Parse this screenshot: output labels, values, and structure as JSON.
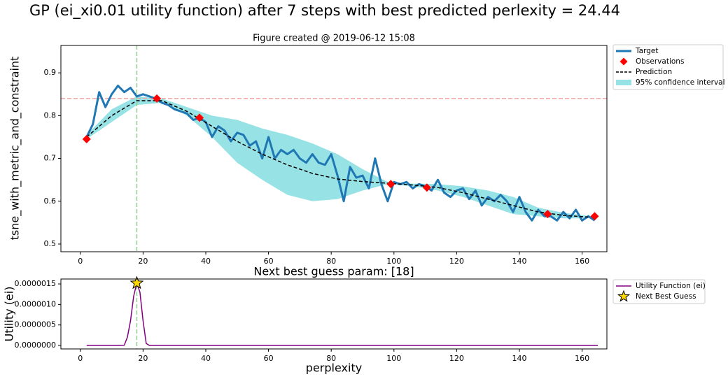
{
  "chart_data": [
    {
      "type": "line",
      "suptitle": "GP (ei_xi0.01 utility function) after 7 steps with best predicted perlexity = 24.44",
      "title": "Figure created @ 2019-06-12 15:08",
      "y_label": "tsne_with_metric_and_constraint",
      "xlim": [
        -6.2,
        167.9
      ],
      "xticks": [
        0,
        20,
        40,
        60,
        80,
        100,
        120,
        140,
        160
      ],
      "ylim": [
        0.482,
        0.964
      ],
      "yticks": [
        0.5,
        0.6,
        0.7,
        0.8,
        0.9
      ],
      "legend": "outside upper right",
      "reference_lines": [
        {
          "axis": "y",
          "value": 0.84,
          "color": "#f4a3a3"
        },
        {
          "axis": "x",
          "value": 18,
          "color": "#8fcf8f"
        }
      ],
      "series": [
        {
          "name": "95% confidence interval",
          "kind": "band",
          "color": "#96e2e4",
          "x": [
            2,
            10,
            18,
            26,
            34,
            42,
            50,
            58,
            66,
            74,
            82,
            90,
            98,
            106,
            114,
            122,
            130,
            138,
            146,
            154,
            162
          ],
          "lower": [
            0.745,
            0.785,
            0.825,
            0.83,
            0.8,
            0.75,
            0.69,
            0.65,
            0.615,
            0.6,
            0.605,
            0.625,
            0.64,
            0.635,
            0.625,
            0.61,
            0.59,
            0.57,
            0.565,
            0.56,
            0.56
          ],
          "upper": [
            0.755,
            0.815,
            0.845,
            0.84,
            0.82,
            0.8,
            0.79,
            0.77,
            0.755,
            0.735,
            0.71,
            0.675,
            0.645,
            0.641,
            0.64,
            0.635,
            0.625,
            0.61,
            0.585,
            0.573,
            0.566
          ]
        },
        {
          "name": "Target",
          "kind": "line",
          "linestyle": "solid",
          "color": "#1f77b4",
          "x": [
            2,
            4,
            6,
            8,
            10,
            12,
            14,
            16,
            18,
            20,
            22,
            24,
            26,
            28,
            30,
            32,
            34,
            36,
            38,
            40,
            42,
            44,
            46,
            48,
            50,
            52,
            54,
            56,
            58,
            60,
            62,
            64,
            66,
            68,
            70,
            72,
            74,
            76,
            78,
            80,
            82,
            84,
            86,
            88,
            90,
            92,
            94,
            96,
            98,
            100,
            102,
            104,
            106,
            108,
            110,
            112,
            114,
            116,
            118,
            120,
            122,
            124,
            126,
            128,
            130,
            132,
            134,
            136,
            138,
            140,
            142,
            144,
            146,
            148,
            150,
            152,
            154,
            156,
            158,
            160,
            162,
            164
          ],
          "values": [
            0.75,
            0.78,
            0.855,
            0.82,
            0.85,
            0.87,
            0.855,
            0.865,
            0.845,
            0.85,
            0.845,
            0.84,
            0.83,
            0.825,
            0.815,
            0.81,
            0.805,
            0.79,
            0.795,
            0.785,
            0.75,
            0.775,
            0.765,
            0.74,
            0.76,
            0.755,
            0.73,
            0.74,
            0.7,
            0.75,
            0.7,
            0.72,
            0.71,
            0.72,
            0.7,
            0.69,
            0.71,
            0.69,
            0.685,
            0.71,
            0.66,
            0.6,
            0.68,
            0.655,
            0.66,
            0.63,
            0.7,
            0.64,
            0.6,
            0.645,
            0.64,
            0.645,
            0.63,
            0.64,
            0.635,
            0.625,
            0.65,
            0.62,
            0.61,
            0.625,
            0.63,
            0.605,
            0.625,
            0.59,
            0.61,
            0.6,
            0.615,
            0.6,
            0.575,
            0.61,
            0.575,
            0.555,
            0.58,
            0.565,
            0.565,
            0.555,
            0.575,
            0.56,
            0.58,
            0.555,
            0.565,
            0.555
          ]
        },
        {
          "name": "Prediction",
          "kind": "line",
          "linestyle": "dashed",
          "color": "#000000",
          "x": [
            2,
            10,
            18,
            26,
            34,
            42,
            50,
            58,
            66,
            74,
            82,
            90,
            98,
            106,
            114,
            122,
            130,
            138,
            146,
            154,
            162
          ],
          "values": [
            0.75,
            0.8,
            0.835,
            0.835,
            0.81,
            0.775,
            0.74,
            0.71,
            0.685,
            0.665,
            0.652,
            0.646,
            0.642,
            0.638,
            0.632,
            0.62,
            0.605,
            0.59,
            0.575,
            0.567,
            0.563
          ]
        },
        {
          "name": "Observations",
          "kind": "scatter",
          "marker": "diamond",
          "color": "#ff0000",
          "x": [
            2,
            24.4,
            38,
            99,
            110.5,
            149,
            164
          ],
          "values": [
            0.745,
            0.84,
            0.795,
            0.64,
            0.632,
            0.57,
            0.565
          ]
        }
      ],
      "legend_order": [
        1,
        3,
        2,
        0
      ]
    },
    {
      "type": "line",
      "title": "Next best guess param: [18]",
      "x_label": "perplexity",
      "y_label": "Utility (ei)",
      "xlim": [
        -6.2,
        167.9
      ],
      "xticks": [
        0,
        20,
        40,
        60,
        80,
        100,
        120,
        140,
        160
      ],
      "ylim": [
        -8.5e-08,
        1.62e-06
      ],
      "yticks": [
        {
          "value": 0,
          "label": "0.0000000"
        },
        {
          "value": 5e-07,
          "label": "0.0000005"
        },
        {
          "value": 1e-06,
          "label": "0.0000010"
        },
        {
          "value": 1.5e-06,
          "label": "0.0000015"
        }
      ],
      "legend": "outside upper right",
      "reference_lines": [
        {
          "axis": "x",
          "value": 18,
          "color": "#8fcf8f"
        }
      ],
      "series": [
        {
          "name": "Utility Function (ei)",
          "kind": "line",
          "linestyle": "solid",
          "color": "#800080",
          "x": [
            2,
            12,
            14,
            15,
            16,
            17,
            18,
            19,
            20,
            21,
            22,
            165
          ],
          "values": [
            0,
            0,
            5e-09,
            2e-07,
            6e-07,
            1.2e-06,
            1.52e-06,
            1.3e-06,
            6e-07,
            5e-08,
            0,
            0
          ]
        },
        {
          "name": "Next Best Guess",
          "kind": "scatter",
          "marker": "star",
          "color": "#ffd700",
          "x": [
            18
          ],
          "values": [
            1.52e-06
          ]
        }
      ],
      "legend_order": [
        0,
        1
      ]
    }
  ]
}
